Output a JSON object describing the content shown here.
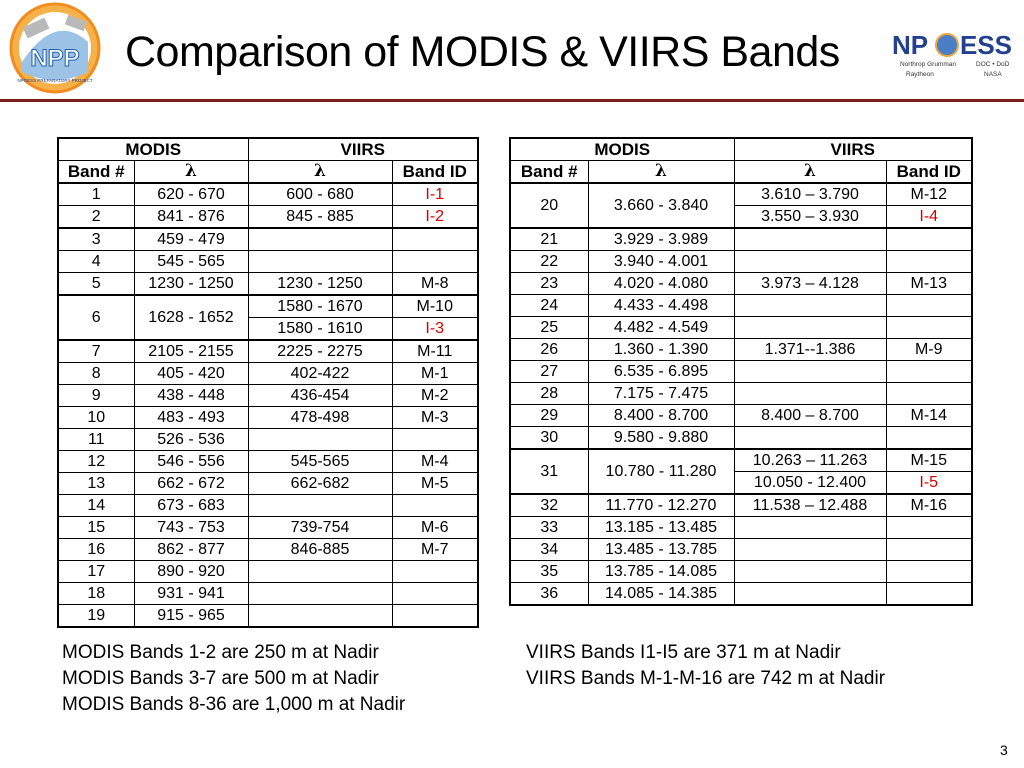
{
  "slide": {
    "title": "Comparison of MODIS & VIIRS Bands",
    "page_number": "3",
    "left_logo": {
      "text": "NPP",
      "caption": "NPOESS PREPARATORY PROJECT",
      "colors": {
        "ring": "#f28c1e",
        "blue": "#1f5fae"
      }
    },
    "right_logo": {
      "wordmark_left": "NP",
      "wordmark_right": "ESS",
      "sub1": "Northrop Grumman",
      "sub2": "Raytheon",
      "sub3": "DOC • DoD",
      "sub4": "NASA"
    }
  },
  "colors": {
    "accent_red": "#d40000",
    "divider": "#7a1f1f",
    "title_blue": "#23408e"
  },
  "left_table": {
    "group_headers": {
      "modis": "MODIS",
      "viirs": "VIIRS"
    },
    "col_headers": [
      "Band #",
      "λ",
      "λ",
      "Band ID"
    ],
    "rows": [
      {
        "band": "1",
        "modis": "620 - 670",
        "viirs": "600 - 680",
        "id": "I-1",
        "id_red": true
      },
      {
        "band": "2",
        "modis": "841 - 876",
        "viirs": "845 - 885",
        "id": "I-2",
        "id_red": true
      },
      {
        "band": "3",
        "modis": "459 - 479",
        "viirs": "",
        "id": ""
      },
      {
        "band": "4",
        "modis": "545 - 565",
        "viirs": "",
        "id": ""
      },
      {
        "band": "5",
        "modis": "1230 - 1250",
        "viirs": "1230 - 1250",
        "id": "M-8"
      },
      {
        "band": "6",
        "modis": "1628 - 1652",
        "viirs": "1580 - 1670",
        "id": "M-10",
        "viirs2": "1580 - 1610",
        "id2": "I-3",
        "id2_red": true
      },
      {
        "band": "7",
        "modis": "2105 - 2155",
        "viirs": "2225 - 2275",
        "id": "M-11"
      },
      {
        "band": "8",
        "modis": "405 - 420",
        "viirs": "402-422",
        "id": "M-1"
      },
      {
        "band": "9",
        "modis": "438 - 448",
        "viirs": "436-454",
        "id": "M-2"
      },
      {
        "band": "10",
        "modis": "483 - 493",
        "viirs": "478-498",
        "id": "M-3"
      },
      {
        "band": "11",
        "modis": "526 - 536",
        "viirs": "",
        "id": ""
      },
      {
        "band": "12",
        "modis": "546 - 556",
        "viirs": "545-565",
        "id": "M-4"
      },
      {
        "band": "13",
        "modis": "662 - 672",
        "viirs": "662-682",
        "id": "M-5"
      },
      {
        "band": "14",
        "modis": "673 - 683",
        "viirs": "",
        "id": ""
      },
      {
        "band": "15",
        "modis": "743 - 753",
        "viirs": "739-754",
        "id": "M-6"
      },
      {
        "band": "16",
        "modis": "862 - 877",
        "viirs": "846-885",
        "id": "M-7"
      },
      {
        "band": "17",
        "modis": "890 - 920",
        "viirs": "",
        "id": ""
      },
      {
        "band": "18",
        "modis": "931 - 941",
        "viirs": "",
        "id": ""
      },
      {
        "band": "19",
        "modis": "915 - 965",
        "viirs": "",
        "id": ""
      }
    ]
  },
  "right_table": {
    "group_headers": {
      "modis": "MODIS",
      "viirs": "VIIRS"
    },
    "col_headers": [
      "Band #",
      "λ",
      "λ",
      "Band ID"
    ],
    "rows": [
      {
        "band": "20",
        "modis": "3.660 - 3.840",
        "viirs": "3.610 – 3.790",
        "id": "M-12",
        "viirs2": "3.550 – 3.930",
        "id2": "I-4",
        "id2_red": true
      },
      {
        "band": "21",
        "modis": "3.929 - 3.989",
        "viirs": "",
        "id": ""
      },
      {
        "band": "22",
        "modis": "3.940 - 4.001",
        "viirs": "",
        "id": ""
      },
      {
        "band": "23",
        "modis": "4.020 - 4.080",
        "viirs": "3.973 – 4.128",
        "id": "M-13"
      },
      {
        "band": "24",
        "modis": "4.433 - 4.498",
        "viirs": "",
        "id": ""
      },
      {
        "band": "25",
        "modis": "4.482 - 4.549",
        "viirs": "",
        "id": ""
      },
      {
        "band": "26",
        "modis": "1.360 - 1.390",
        "viirs": "1.371--1.386",
        "id": "M-9"
      },
      {
        "band": "27",
        "modis": "6.535 - 6.895",
        "viirs": "",
        "id": ""
      },
      {
        "band": "28",
        "modis": "7.175 - 7.475",
        "viirs": "",
        "id": ""
      },
      {
        "band": "29",
        "modis": "8.400 - 8.700",
        "viirs": "8.400 – 8.700",
        "id": "M-14"
      },
      {
        "band": "30",
        "modis": "9.580 - 9.880",
        "viirs": "",
        "id": ""
      },
      {
        "band": "31",
        "modis": "10.780 - 11.280",
        "viirs": "10.263 – 11.263",
        "id": "M-15",
        "viirs2": "10.050 - 12.400",
        "id2": "I-5",
        "id2_red": true
      },
      {
        "band": "32",
        "modis": "11.770 - 12.270",
        "viirs": "11.538 – 12.488",
        "id": "M-16"
      },
      {
        "band": "33",
        "modis": "13.185 - 13.485",
        "viirs": "",
        "id": ""
      },
      {
        "band": "34",
        "modis": "13.485 - 13.785",
        "viirs": "",
        "id": ""
      },
      {
        "band": "35",
        "modis": "13.785 - 14.085",
        "viirs": "",
        "id": ""
      },
      {
        "band": "36",
        "modis": "14.085 - 14.385",
        "viirs": "",
        "id": ""
      }
    ]
  },
  "notes": {
    "modis": [
      "MODIS Bands 1-2 are 250 m at Nadir",
      "MODIS Bands 3-7 are 500 m at Nadir",
      "MODIS Bands 8-36 are 1,000 m at Nadir"
    ],
    "viirs": [
      "VIIRS Bands I1-I5 are 371 m at Nadir",
      "VIIRS Bands M-1-M-16 are 742 m at Nadir"
    ]
  }
}
